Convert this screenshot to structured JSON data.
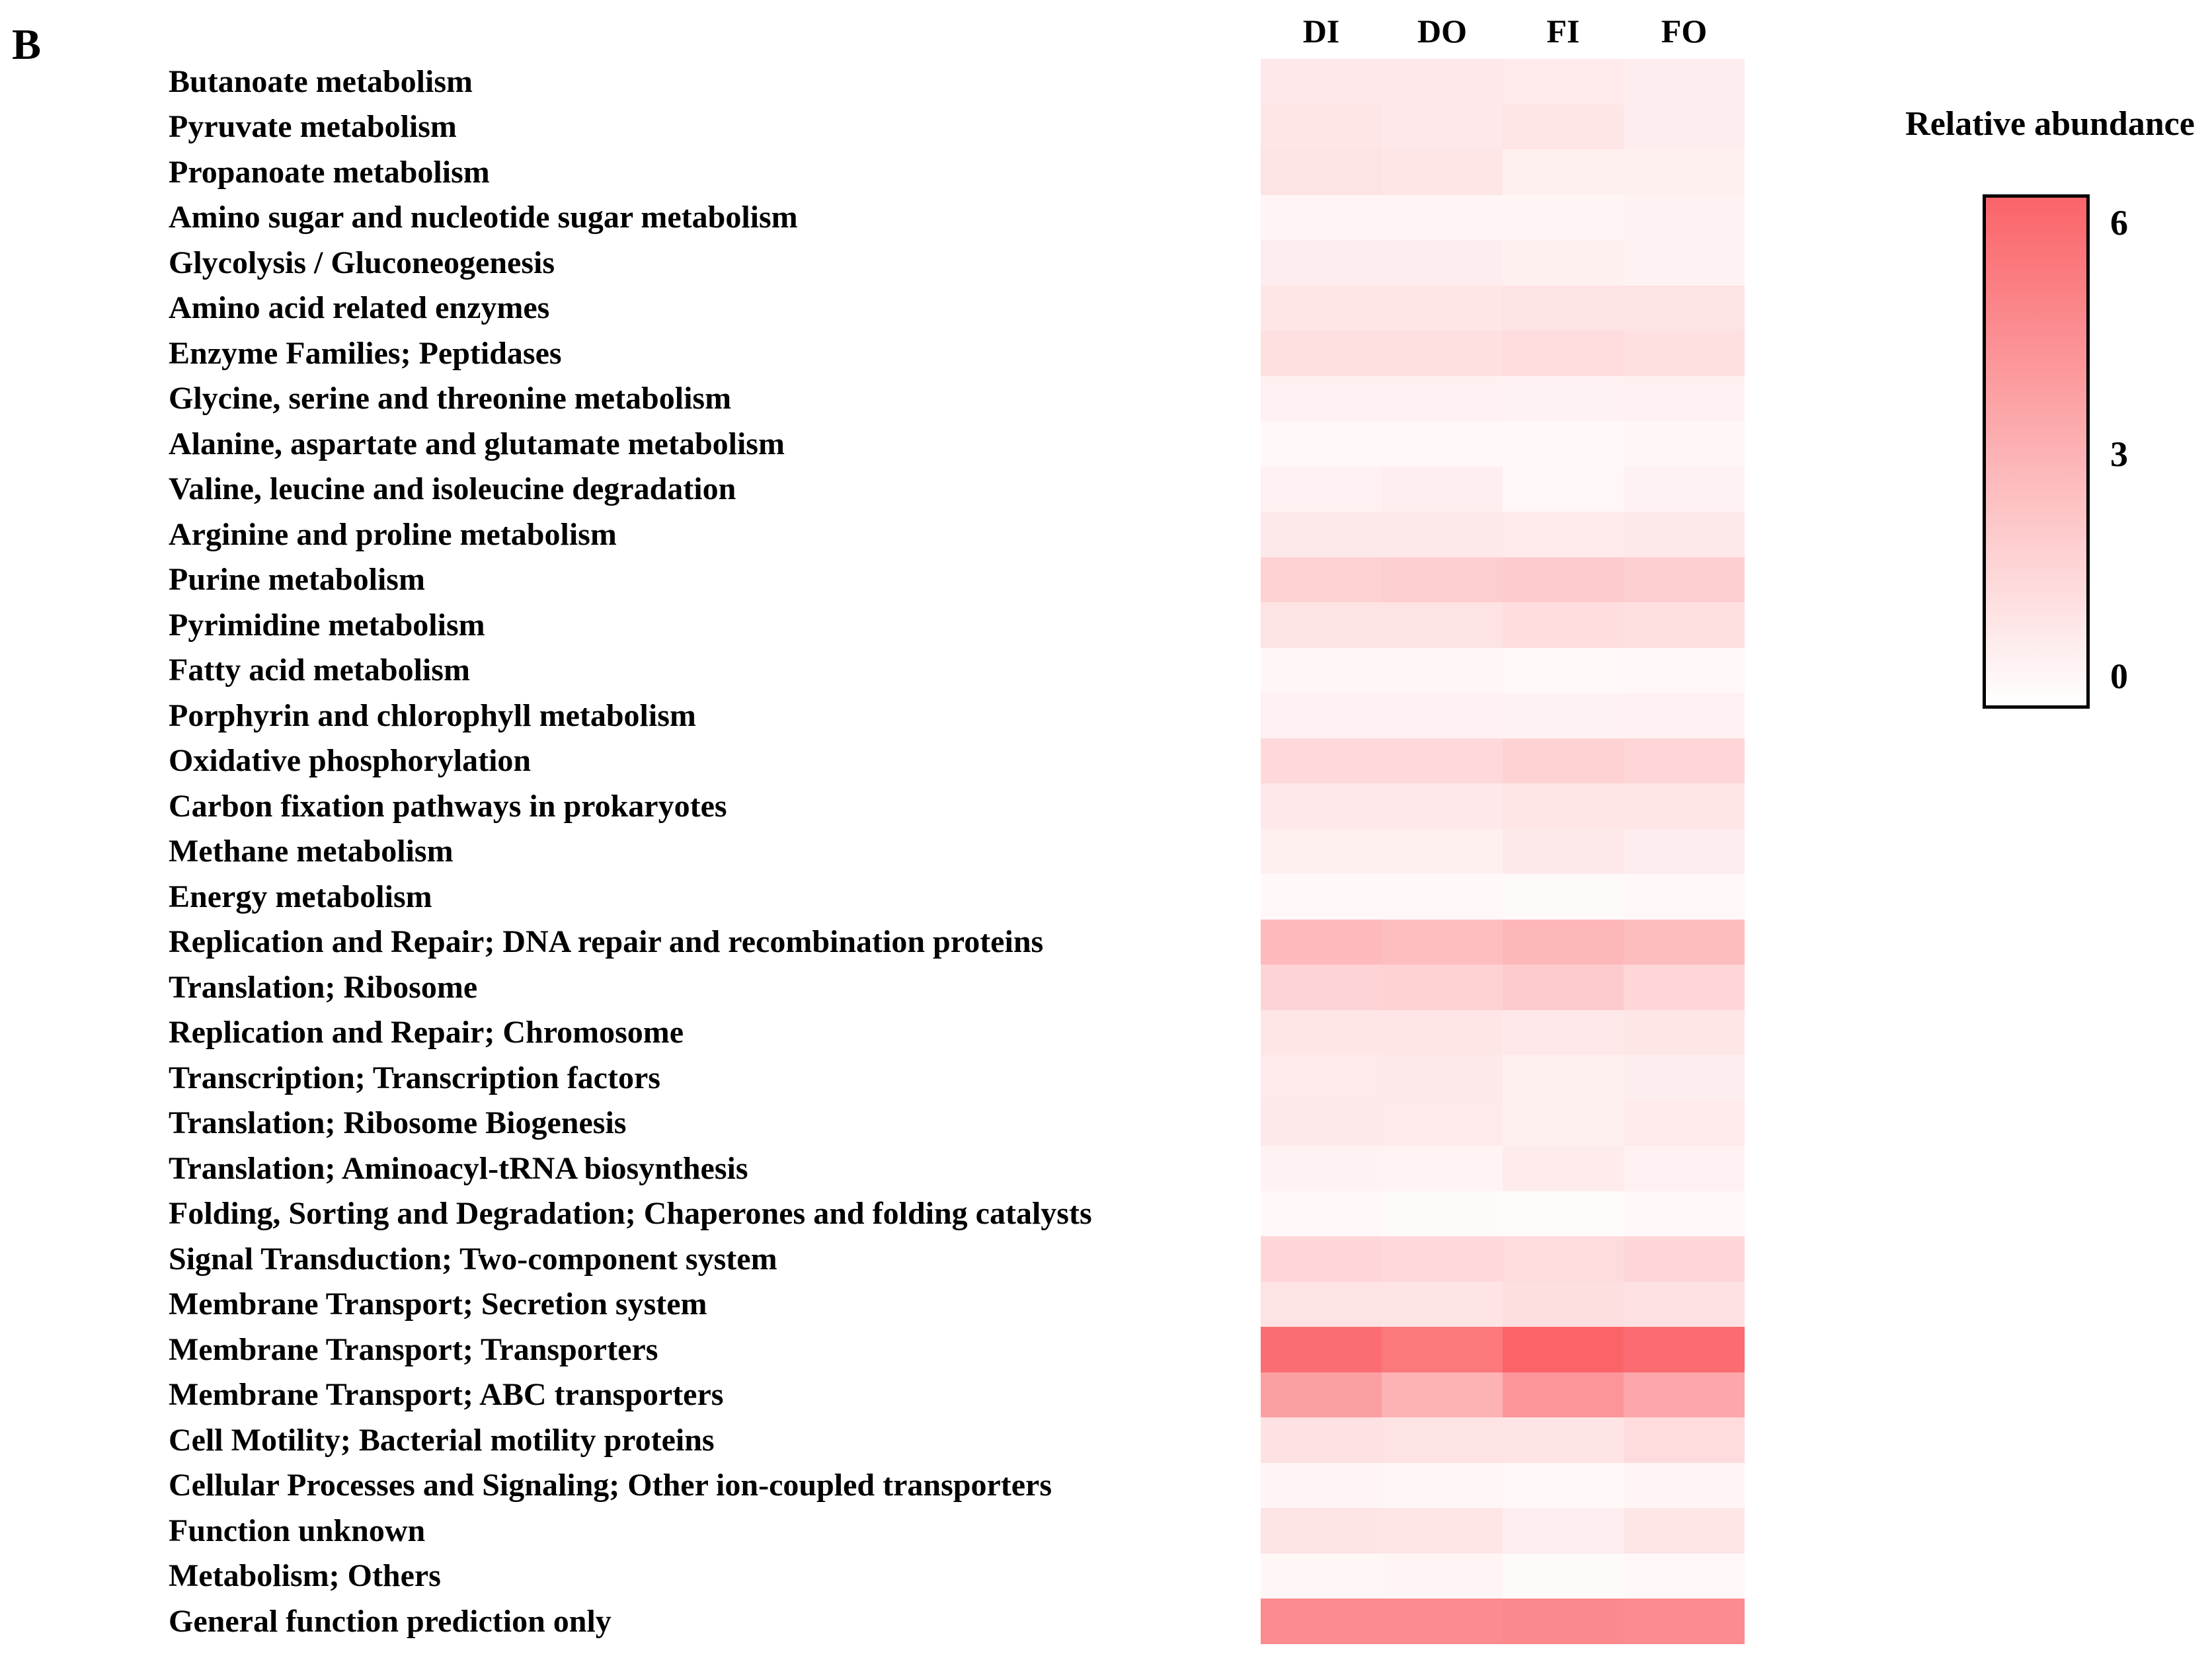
{
  "panel_label": "B",
  "chart_data": {
    "type": "heatmap",
    "columns": [
      "DI",
      "DO",
      "FI",
      "FO"
    ],
    "rows": [
      {
        "label": "Butanoate metabolism",
        "values": [
          0.9,
          0.9,
          0.8,
          0.7
        ]
      },
      {
        "label": "Pyruvate metabolism",
        "values": [
          1.0,
          0.9,
          1.0,
          0.7
        ]
      },
      {
        "label": "Propanoate metabolism",
        "values": [
          1.1,
          1.0,
          0.6,
          0.6
        ]
      },
      {
        "label": "Amino sugar and nucleotide sugar metabolism",
        "values": [
          0.4,
          0.4,
          0.4,
          0.5
        ]
      },
      {
        "label": "Glycolysis / Gluconeogenesis",
        "values": [
          0.7,
          0.7,
          0.6,
          0.5
        ]
      },
      {
        "label": "Amino acid related enzymes",
        "values": [
          1.0,
          1.0,
          1.1,
          1.1
        ]
      },
      {
        "label": "Enzyme Families; Peptidases",
        "values": [
          1.2,
          1.2,
          1.4,
          1.2
        ]
      },
      {
        "label": "Glycine, serine and threonine metabolism",
        "values": [
          0.55,
          0.55,
          0.5,
          0.55
        ]
      },
      {
        "label": "Alanine, aspartate and glutamate metabolism",
        "values": [
          0.3,
          0.3,
          0.3,
          0.35
        ]
      },
      {
        "label": "Valine, leucine and isoleucine degradation",
        "values": [
          0.55,
          0.65,
          0.3,
          0.5
        ]
      },
      {
        "label": "Arginine and proline metabolism",
        "values": [
          0.85,
          0.85,
          0.8,
          0.85
        ]
      },
      {
        "label": "Purine metabolism",
        "values": [
          1.8,
          1.9,
          2.0,
          1.9
        ]
      },
      {
        "label": "Pyrimidine metabolism",
        "values": [
          1.1,
          1.1,
          1.3,
          1.2
        ]
      },
      {
        "label": "Fatty acid metabolism",
        "values": [
          0.35,
          0.35,
          0.25,
          0.3
        ]
      },
      {
        "label": "Porphyrin and chlorophyll metabolism",
        "values": [
          0.55,
          0.55,
          0.5,
          0.55
        ]
      },
      {
        "label": "Oxidative phosphorylation",
        "values": [
          1.5,
          1.5,
          1.75,
          1.6
        ]
      },
      {
        "label": "Carbon fixation pathways in prokaryotes",
        "values": [
          0.9,
          0.9,
          1.0,
          1.0
        ]
      },
      {
        "label": "Methane metabolism",
        "values": [
          0.6,
          0.6,
          0.85,
          0.7
        ]
      },
      {
        "label": "Energy metabolism",
        "values": [
          0.3,
          0.3,
          0.2,
          0.3
        ]
      },
      {
        "label": "Replication and Repair; DNA repair and recombination proteins",
        "values": [
          2.7,
          2.5,
          2.8,
          2.6
        ]
      },
      {
        "label": "Translation; Ribosome",
        "values": [
          1.7,
          1.8,
          2.0,
          1.6
        ]
      },
      {
        "label": "Replication and Repair; Chromosome",
        "values": [
          0.95,
          0.95,
          0.9,
          0.95
        ]
      },
      {
        "label": "Transcription; Transcription factors",
        "values": [
          0.8,
          0.85,
          0.6,
          0.7
        ]
      },
      {
        "label": "Translation; Ribosome Biogenesis",
        "values": [
          0.85,
          0.8,
          0.6,
          0.8
        ]
      },
      {
        "label": "Translation; Aminoacyl-tRNA biosynthesis",
        "values": [
          0.5,
          0.45,
          0.75,
          0.55
        ]
      },
      {
        "label": "Folding, Sorting and Degradation; Chaperones and folding catalysts",
        "values": [
          0.3,
          0.2,
          0.15,
          0.3
        ]
      },
      {
        "label": "Signal Transduction; Two-component system",
        "values": [
          1.6,
          1.5,
          1.4,
          1.6
        ]
      },
      {
        "label": "Membrane Transport; Secretion system",
        "values": [
          1.1,
          1.05,
          1.25,
          1.15
        ]
      },
      {
        "label": "Membrane Transport; Transporters",
        "values": [
          5.6,
          5.2,
          6.0,
          5.7
        ]
      },
      {
        "label": "Membrane Transport; ABC transporters",
        "values": [
          3.7,
          3.0,
          4.1,
          3.4
        ]
      },
      {
        "label": "Cell Motility; Bacterial motility proteins",
        "values": [
          1.15,
          1.1,
          1.05,
          1.35
        ]
      },
      {
        "label": "Cellular Processes and Signaling; Other ion-coupled transporters",
        "values": [
          0.4,
          0.35,
          0.3,
          0.4
        ]
      },
      {
        "label": "Function unknown",
        "values": [
          1.05,
          1.0,
          0.65,
          1.0
        ]
      },
      {
        "label": "Metabolism; Others",
        "values": [
          0.35,
          0.4,
          0.2,
          0.3
        ]
      },
      {
        "label": "General function prediction only",
        "values": [
          4.5,
          4.5,
          4.6,
          4.5
        ]
      }
    ],
    "value_scale": {
      "label": "Relative abundance",
      "vmin": 0,
      "vmax": 6,
      "tick_labels": [
        "6",
        "3",
        "0"
      ]
    },
    "colors": {
      "min": "#ffffff",
      "max": "#fa6469"
    },
    "legend_position": "right",
    "grid": false
  }
}
